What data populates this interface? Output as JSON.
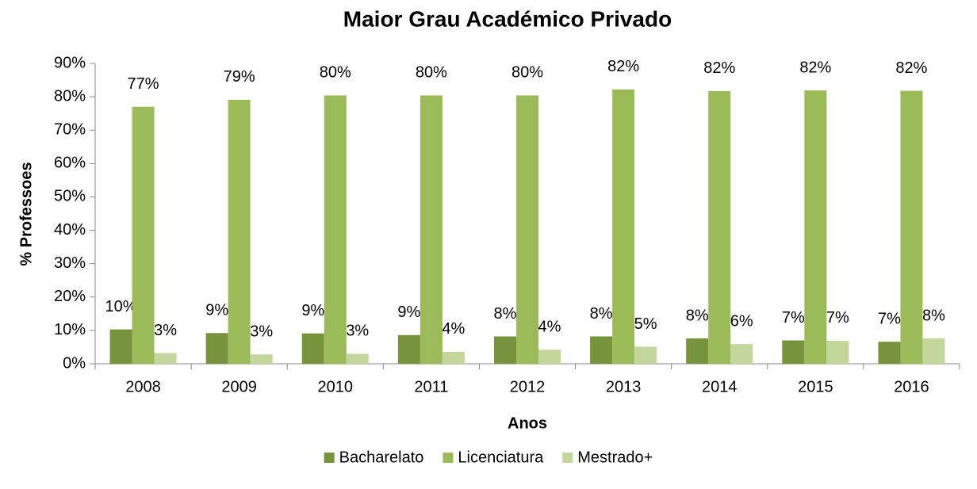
{
  "chart_data": {
    "type": "bar",
    "title": "Maior Grau Académico Privado",
    "x_label": "Anos",
    "y_label": "% Professoes",
    "categories": [
      "2008",
      "2009",
      "2010",
      "2011",
      "2012",
      "2013",
      "2014",
      "2015",
      "2016"
    ],
    "series": [
      {
        "name": "Bacharelato",
        "color": "#77933c",
        "values": [
          10.3,
          9.2,
          9.1,
          8.6,
          8.2,
          8.2,
          7.6,
          7.0,
          6.6
        ],
        "value_labels": [
          "10%",
          "9%",
          "9%",
          "9%",
          "8%",
          "8%",
          "8%",
          "7%",
          "7%"
        ]
      },
      {
        "name": "Licenciatura",
        "color": "#9bbb59",
        "values": [
          77.0,
          79.1,
          80.4,
          80.4,
          80.4,
          82.2,
          81.7,
          81.9,
          81.8
        ],
        "value_labels": [
          "77%",
          "79%",
          "80%",
          "80%",
          "80%",
          "82%",
          "82%",
          "82%",
          "82%"
        ]
      },
      {
        "name": "Mestrado+",
        "color": "#c3d69b",
        "values": [
          3.2,
          2.8,
          3.0,
          3.6,
          4.2,
          5.1,
          5.9,
          6.9,
          7.6
        ],
        "value_labels": [
          "3%",
          "3%",
          "3%",
          "4%",
          "4%",
          "5%",
          "6%",
          "7%",
          "8%"
        ]
      }
    ],
    "ylim": [
      0,
      90
    ],
    "yticks": [
      {
        "value": 0,
        "label": "0%"
      },
      {
        "value": 10,
        "label": "10%"
      },
      {
        "value": 20,
        "label": "20%"
      },
      {
        "value": 30,
        "label": "30%"
      },
      {
        "value": 40,
        "label": "40%"
      },
      {
        "value": 50,
        "label": "50%"
      },
      {
        "value": 60,
        "label": "60%"
      },
      {
        "value": 70,
        "label": "70%"
      },
      {
        "value": 80,
        "label": "80%"
      },
      {
        "value": 90,
        "label": "90%"
      }
    ],
    "grid": false,
    "legend": "bottom"
  }
}
